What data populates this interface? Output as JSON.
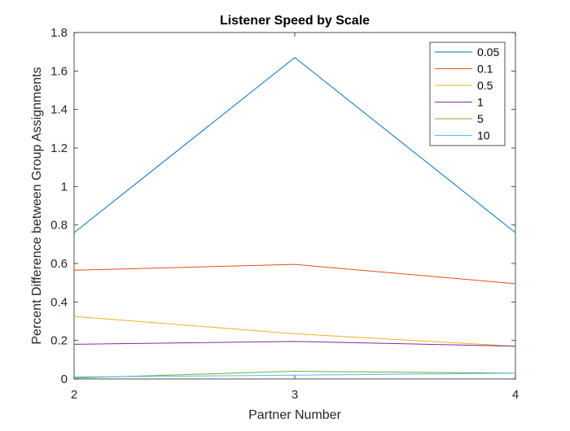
{
  "chart_data": {
    "type": "line",
    "title": "Listener Speed by Scale",
    "xlabel": "Partner Number",
    "ylabel": "Percent Difference between Group Assignments",
    "x": [
      2,
      3,
      4
    ],
    "xlim": [
      2,
      4
    ],
    "ylim": [
      0,
      1.8
    ],
    "xticks": [
      "2",
      "3",
      "4"
    ],
    "yticks": [
      "0",
      "0.2",
      "0.4",
      "0.6",
      "0.8",
      "1",
      "1.2",
      "1.4",
      "1.6",
      "1.8"
    ],
    "grid": false,
    "legend_position": "top-right",
    "series": [
      {
        "name": "0.05",
        "color": "#0072BD",
        "values": [
          0.76,
          1.67,
          0.76
        ]
      },
      {
        "name": "0.1",
        "color": "#D95319",
        "values": [
          0.565,
          0.595,
          0.495
        ]
      },
      {
        "name": "0.5",
        "color": "#EDB120",
        "values": [
          0.325,
          0.235,
          0.17
        ]
      },
      {
        "name": "1",
        "color": "#7E2F8E",
        "values": [
          0.18,
          0.195,
          0.17
        ]
      },
      {
        "name": "5",
        "color": "#77AC30",
        "values": [
          0.005,
          0.04,
          0.03
        ]
      },
      {
        "name": "10",
        "color": "#4DBEEE",
        "values": [
          0.01,
          0.02,
          0.03
        ]
      }
    ]
  }
}
